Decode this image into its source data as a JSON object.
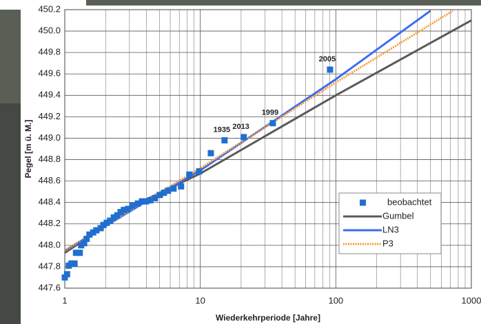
{
  "chart_data": {
    "type": "line",
    "xlabel": "Wiederkehrperiode [Jahre]",
    "ylabel": "Pegel [m ü. M.]",
    "xscale": "log",
    "xlim": [
      1,
      1000
    ],
    "xticks": [
      1,
      10,
      100,
      1000
    ],
    "ylim": [
      447.6,
      450.2
    ],
    "yticks": [
      447.6,
      447.8,
      {
        "value": 448,
        "label": "448.0"
      },
      448.2,
      448.4,
      448.6,
      448.8,
      {
        "value": 449,
        "label": "449.0"
      },
      449.2,
      449.4,
      449.6,
      449.8,
      {
        "value": 450,
        "label": "450.0"
      },
      450.2
    ],
    "grid": true,
    "legend": "lower right",
    "series": [
      {
        "name": "beobachtet",
        "type": "scatter",
        "color": "#1f6fd1",
        "x": [
          1.0,
          1.04,
          1.07,
          1.12,
          1.18,
          1.21,
          1.29,
          1.32,
          1.39,
          1.45,
          1.52,
          1.62,
          1.71,
          1.84,
          1.93,
          2.04,
          2.16,
          2.3,
          2.44,
          2.58,
          2.73,
          2.93,
          3.15,
          3.46,
          3.71,
          3.98,
          4.27,
          4.63,
          5.03,
          5.39,
          5.78,
          6.35,
          7.21,
          8.3,
          9.8,
          11.96,
          15.1,
          20.9,
          34.3,
          90.6
        ],
        "values": [
          447.7,
          447.73,
          447.81,
          447.83,
          447.83,
          447.93,
          447.93,
          448.0,
          448.02,
          448.06,
          448.1,
          448.12,
          448.14,
          448.16,
          448.19,
          448.21,
          448.23,
          448.26,
          448.28,
          448.31,
          448.33,
          448.34,
          448.37,
          448.39,
          448.41,
          448.41,
          448.42,
          448.44,
          448.47,
          448.49,
          448.51,
          448.53,
          448.55,
          448.66,
          448.69,
          448.86,
          448.98,
          449.01,
          449.14,
          449.64
        ],
        "point_labels": [
          null,
          null,
          null,
          null,
          null,
          null,
          null,
          null,
          null,
          null,
          null,
          null,
          null,
          null,
          null,
          null,
          null,
          null,
          null,
          null,
          null,
          null,
          null,
          null,
          null,
          null,
          null,
          null,
          null,
          null,
          null,
          null,
          null,
          null,
          null,
          null,
          "1935",
          "2013",
          "1999",
          "2005"
        ]
      },
      {
        "name": "Gumbel",
        "type": "line",
        "color": "#595959",
        "x": [
          1,
          4,
          10,
          100,
          1000
        ],
        "values": [
          447.93,
          448.43,
          448.67,
          449.4,
          450.1
        ]
      },
      {
        "name": "LN3",
        "type": "line",
        "color": "#3a6cf4",
        "x": [
          1,
          4,
          10,
          100,
          500
        ],
        "values": [
          447.95,
          448.41,
          448.7,
          449.55,
          450.19
        ]
      },
      {
        "name": "P3",
        "type": "line",
        "color": "#f59a30",
        "dash": "dotted",
        "x": [
          1,
          4,
          10,
          100,
          733
        ],
        "values": [
          447.95,
          448.42,
          448.72,
          449.52,
          450.19
        ]
      }
    ]
  }
}
